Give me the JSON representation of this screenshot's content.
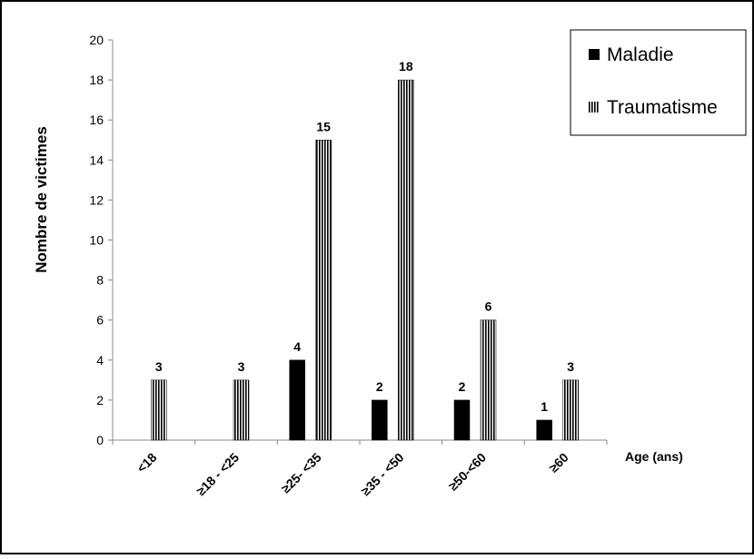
{
  "chart_data": {
    "type": "bar",
    "categories": [
      "<18",
      "≥18 - <25",
      "≥25- <35",
      "≥35 - <50",
      "≥50-<60",
      "≥60"
    ],
    "series": [
      {
        "name": "Maladie",
        "values": [
          null,
          null,
          4,
          2,
          2,
          1
        ],
        "pattern": "solid",
        "color": "#000000"
      },
      {
        "name": "Traumatisme",
        "values": [
          3,
          3,
          15,
          18,
          6,
          3
        ],
        "pattern": "vertical-stripes",
        "color": "#000000"
      }
    ],
    "xlabel": "Age (ans)",
    "ylabel": "Nombre de victimes",
    "ylim": [
      0,
      20
    ],
    "yticks": [
      0,
      2,
      4,
      6,
      8,
      10,
      12,
      14,
      16,
      18,
      20
    ],
    "legend_position": "top-right",
    "grid": false,
    "data_labels": true
  }
}
